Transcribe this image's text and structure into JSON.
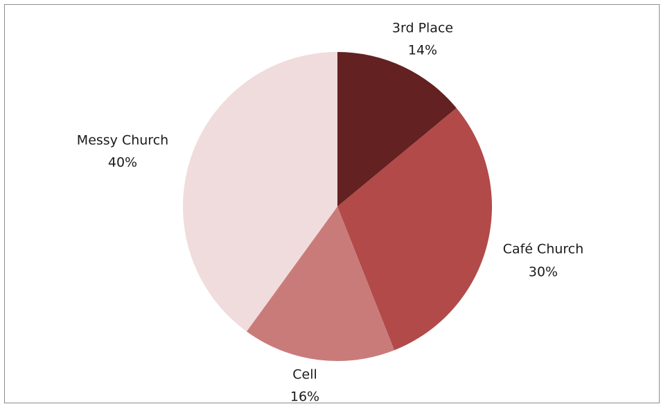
{
  "chart_data": {
    "type": "pie",
    "title": "",
    "slices": [
      {
        "label": "3rd Place",
        "value": 14,
        "value_label": "14%",
        "color": "#632121"
      },
      {
        "label": "Café Church",
        "value": 30,
        "value_label": "30%",
        "color": "#b14a49"
      },
      {
        "label": "Cell",
        "value": 16,
        "value_label": "16%",
        "color": "#c97b7a"
      },
      {
        "label": "Messy Church",
        "value": 40,
        "value_label": "40%",
        "color": "#f0dcdc"
      }
    ],
    "start_angle": "12 o'clock",
    "direction": "clockwise",
    "legend": "none",
    "labels": "outside, category name and percentage"
  }
}
